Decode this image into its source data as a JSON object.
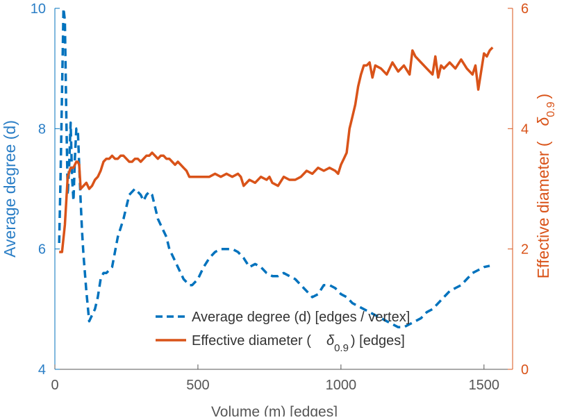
{
  "chart_data": {
    "type": "line",
    "title": "",
    "xlabel": "Volume (m) [edges]",
    "xlim": [
      0,
      1600
    ],
    "xticks": [
      0,
      500,
      1000,
      1500
    ],
    "ylabel_left": "Average degree (d)",
    "ylim_left": [
      4,
      10
    ],
    "yticks_left": [
      4,
      6,
      8,
      10
    ],
    "ylabel_right_parts": [
      "Effective diameter (",
      "δ",
      "0.9",
      ")"
    ],
    "ylim_right": [
      0,
      6
    ],
    "yticks_right": [
      0,
      2,
      4,
      6
    ],
    "grid": false,
    "legend_position": "bottom-right",
    "colors": {
      "left_axis": "#2a7ec6",
      "right_axis": "#d95319",
      "axis_text": "#555555"
    },
    "legend": {
      "avg_degree": "Average degree (d) [edges / vertex]",
      "diam_prefix": "Effective diameter (",
      "diam_symbol": "δ",
      "diam_sub": "0.9",
      "diam_suffix": ") [edges]"
    },
    "series": [
      {
        "name": "Average degree (d) [edges / vertex]",
        "axis": "left",
        "style": "dashed",
        "color": "#0072bd",
        "x": [
          15,
          20,
          25,
          30,
          35,
          40,
          45,
          50,
          55,
          60,
          65,
          70,
          75,
          80,
          85,
          90,
          95,
          100,
          110,
          120,
          130,
          140,
          150,
          160,
          170,
          180,
          200,
          220,
          240,
          260,
          280,
          290,
          300,
          310,
          320,
          330,
          340,
          350,
          360,
          370,
          380,
          390,
          400,
          410,
          420,
          430,
          440,
          450,
          460,
          470,
          480,
          500,
          520,
          540,
          560,
          580,
          600,
          620,
          640,
          660,
          680,
          700,
          720,
          740,
          760,
          780,
          800,
          820,
          840,
          860,
          880,
          900,
          920,
          940,
          960,
          980,
          1000,
          1020,
          1040,
          1060,
          1080,
          1100,
          1120,
          1140,
          1160,
          1180,
          1200,
          1220,
          1240,
          1260,
          1280,
          1300,
          1320,
          1340,
          1360,
          1380,
          1400,
          1420,
          1440,
          1460,
          1480,
          1500,
          1520
        ],
        "y": [
          6.1,
          7.2,
          8.6,
          10.0,
          9.8,
          8.2,
          6.9,
          7.4,
          8.1,
          7.2,
          6.8,
          7.5,
          8.0,
          8.0,
          7.4,
          6.8,
          6.3,
          5.9,
          5.3,
          4.8,
          4.9,
          5.0,
          5.2,
          5.5,
          5.6,
          5.6,
          5.7,
          6.2,
          6.5,
          6.9,
          7.0,
          6.95,
          6.9,
          6.8,
          6.9,
          6.95,
          6.9,
          6.7,
          6.5,
          6.4,
          6.3,
          6.2,
          6.0,
          5.9,
          5.8,
          5.7,
          5.6,
          5.5,
          5.45,
          5.4,
          5.4,
          5.5,
          5.7,
          5.85,
          5.95,
          6.0,
          6.0,
          6.0,
          5.95,
          5.85,
          5.7,
          5.75,
          5.7,
          5.6,
          5.55,
          5.55,
          5.6,
          5.55,
          5.5,
          5.4,
          5.3,
          5.2,
          5.25,
          5.4,
          5.4,
          5.35,
          5.25,
          5.2,
          5.1,
          5.05,
          5.0,
          4.95,
          4.9,
          4.85,
          4.8,
          4.75,
          4.7,
          4.7,
          4.75,
          4.8,
          4.85,
          4.95,
          5.0,
          5.1,
          5.2,
          5.3,
          5.35,
          5.4,
          5.5,
          5.6,
          5.65,
          5.7,
          5.72
        ]
      },
      {
        "name": "Effective diameter (δ0.9) [edges]",
        "axis": "right",
        "style": "solid",
        "color": "#d95319",
        "x": [
          15,
          25,
          35,
          45,
          55,
          65,
          70,
          75,
          80,
          85,
          90,
          100,
          110,
          120,
          130,
          140,
          150,
          160,
          170,
          180,
          190,
          200,
          210,
          220,
          230,
          240,
          250,
          260,
          270,
          280,
          290,
          300,
          310,
          320,
          330,
          340,
          350,
          360,
          370,
          380,
          390,
          400,
          410,
          420,
          430,
          440,
          450,
          460,
          470,
          480,
          500,
          520,
          540,
          560,
          580,
          600,
          620,
          640,
          650,
          660,
          680,
          700,
          720,
          740,
          750,
          760,
          780,
          800,
          820,
          840,
          860,
          880,
          900,
          920,
          940,
          960,
          980,
          990,
          1000,
          1010,
          1020,
          1030,
          1040,
          1050,
          1060,
          1070,
          1080,
          1090,
          1100,
          1110,
          1120,
          1140,
          1160,
          1180,
          1200,
          1220,
          1240,
          1250,
          1260,
          1280,
          1300,
          1320,
          1330,
          1340,
          1350,
          1360,
          1380,
          1400,
          1420,
          1440,
          1460,
          1470,
          1480,
          1500,
          1510,
          1520,
          1530
        ],
        "y": [
          1.95,
          1.95,
          2.4,
          3.2,
          3.35,
          3.35,
          3.4,
          3.45,
          3.45,
          3.4,
          3.0,
          3.05,
          3.1,
          3.0,
          3.05,
          3.15,
          3.2,
          3.3,
          3.45,
          3.5,
          3.5,
          3.55,
          3.5,
          3.5,
          3.55,
          3.55,
          3.5,
          3.45,
          3.45,
          3.5,
          3.5,
          3.45,
          3.5,
          3.55,
          3.55,
          3.6,
          3.55,
          3.5,
          3.55,
          3.55,
          3.5,
          3.5,
          3.45,
          3.4,
          3.45,
          3.4,
          3.35,
          3.3,
          3.2,
          3.2,
          3.2,
          3.2,
          3.2,
          3.25,
          3.2,
          3.25,
          3.2,
          3.25,
          3.2,
          3.05,
          3.15,
          3.1,
          3.2,
          3.15,
          3.2,
          3.1,
          3.05,
          3.2,
          3.15,
          3.15,
          3.2,
          3.3,
          3.25,
          3.35,
          3.3,
          3.35,
          3.3,
          3.25,
          3.4,
          3.5,
          3.6,
          4.0,
          4.2,
          4.4,
          4.7,
          4.9,
          5.05,
          5.05,
          5.1,
          4.85,
          5.05,
          5.0,
          4.9,
          5.1,
          4.95,
          5.05,
          4.9,
          5.3,
          5.2,
          5.1,
          5.0,
          4.9,
          5.2,
          4.85,
          5.05,
          5.0,
          5.1,
          5.0,
          5.15,
          5.0,
          4.9,
          5.05,
          4.65,
          5.25,
          5.2,
          5.3,
          5.35
        ]
      }
    ]
  }
}
